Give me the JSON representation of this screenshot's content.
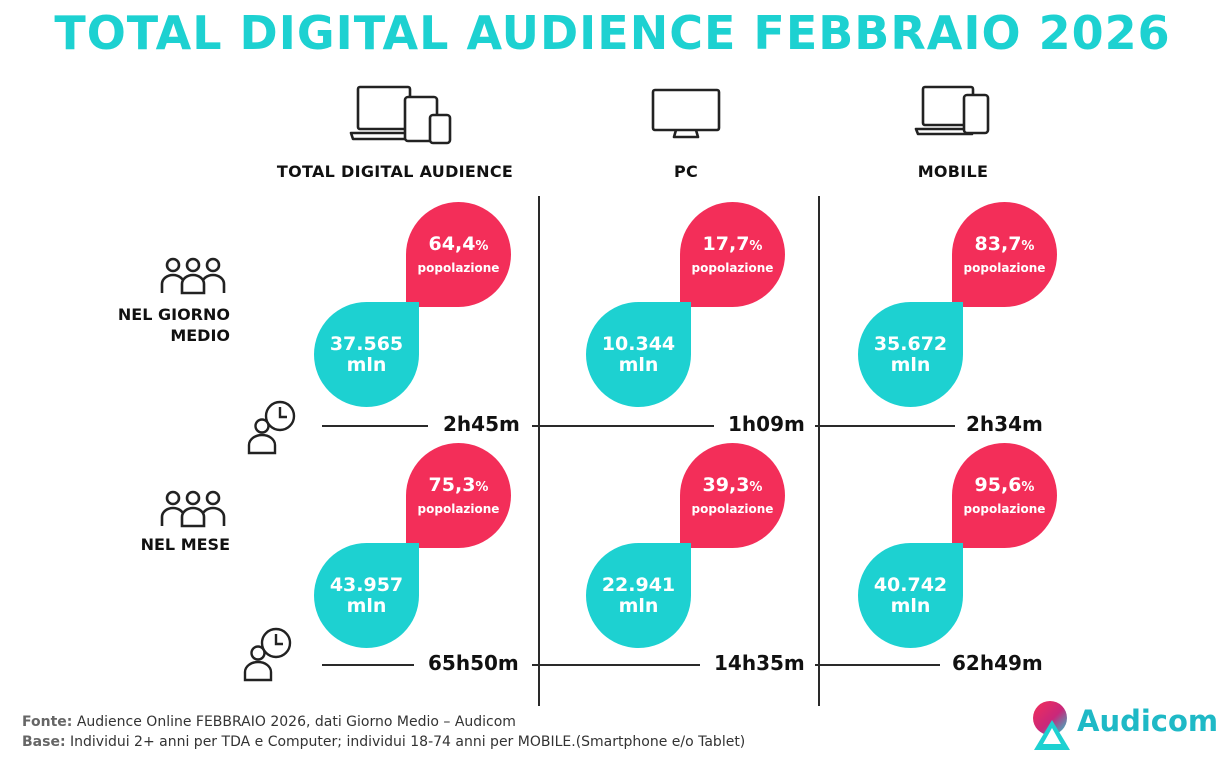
{
  "title": "TOTAL DIGITAL AUDIENCE FEBBRAIO 2026",
  "columns": [
    {
      "label": "TOTAL DIGITAL AUDIENCE",
      "icon": "laptop-tablet-phone-icon"
    },
    {
      "label": "PC",
      "icon": "desktop-monitor-icon"
    },
    {
      "label": "MOBILE",
      "icon": "laptop-phone-icon"
    }
  ],
  "rows": [
    {
      "label_line1": "NEL GIORNO",
      "label_line2": "MEDIO",
      "cells": [
        {
          "pct": "64,4",
          "pct_unit": "%",
          "pct_label": "popolazione",
          "users": "37.565",
          "users_unit": "mln",
          "time": "2h45m"
        },
        {
          "pct": "17,7",
          "pct_unit": "%",
          "pct_label": "popolazione",
          "users": "10.344",
          "users_unit": "mln",
          "time": "1h09m"
        },
        {
          "pct": "83,7",
          "pct_unit": "%",
          "pct_label": "popolazione",
          "users": "35.672",
          "users_unit": "mln",
          "time": "2h34m"
        }
      ]
    },
    {
      "label_line1": "NEL MESE",
      "label_line2": "",
      "cells": [
        {
          "pct": "75,3",
          "pct_unit": "%",
          "pct_label": "popolazione",
          "users": "43.957",
          "users_unit": "mln",
          "time": "65h50m"
        },
        {
          "pct": "39,3",
          "pct_unit": "%",
          "pct_label": "popolazione",
          "users": "22.941",
          "users_unit": "mln",
          "time": "14h35m"
        },
        {
          "pct": "95,6",
          "pct_unit": "%",
          "pct_label": "popolazione",
          "users": "40.742",
          "users_unit": "mln",
          "time": "62h49m"
        }
      ]
    }
  ],
  "footer": {
    "fonte_label": "Fonte:",
    "fonte_text": "Audience Online FEBBRAIO 2026, dati Giorno Medio – Audicom",
    "base_label": "Base:",
    "base_text": "Individui 2+ anni per TDA e Computer; individui 18-74 anni per MOBILE.(Smartphone e/o Tablet)"
  },
  "brand": {
    "name": "Audicom",
    "color_teal": "#1dd1d1",
    "color_red": "#f32e59",
    "logo_icon": "audicom-logo-icon"
  }
}
